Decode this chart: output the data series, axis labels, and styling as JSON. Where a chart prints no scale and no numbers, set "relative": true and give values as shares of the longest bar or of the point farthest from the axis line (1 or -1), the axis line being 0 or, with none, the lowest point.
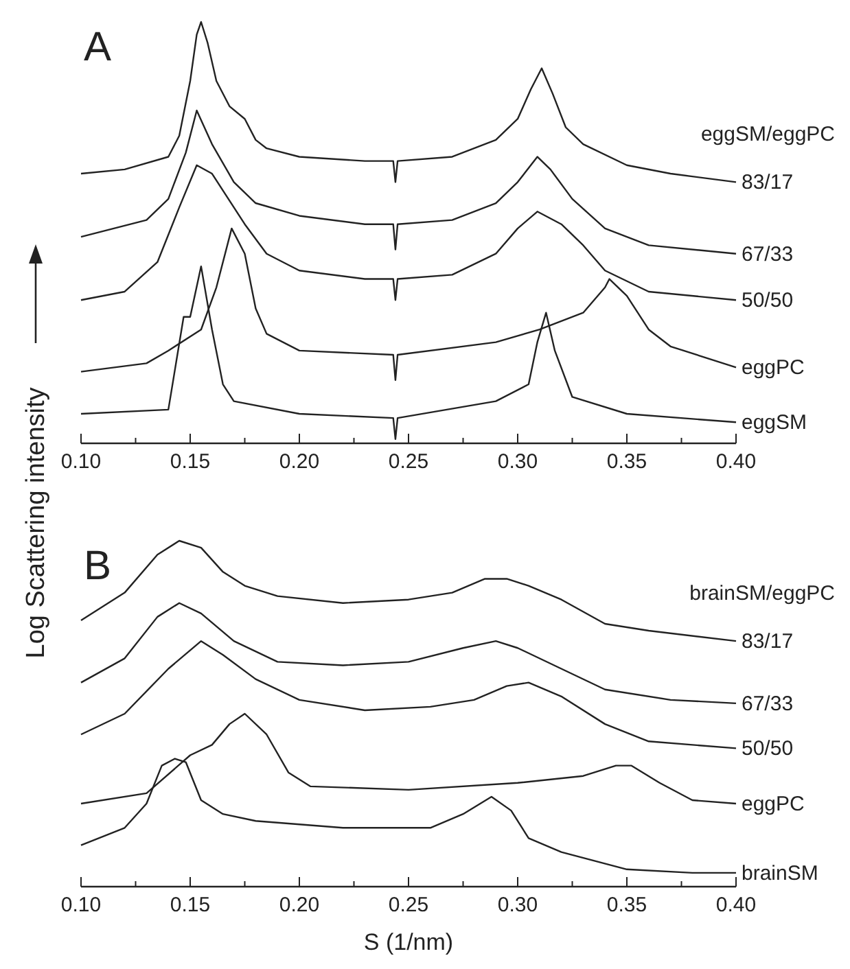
{
  "chart_data": [
    {
      "type": "line",
      "title": "A",
      "ylabel": "Log Scattering intensity",
      "legend_title": "eggSM/eggPC",
      "relative": true,
      "xlim": [
        0.1,
        0.4
      ],
      "xticks": [
        {
          "value": 0.1,
          "label": "0.10"
        },
        {
          "value": 0.125,
          "label": null
        },
        {
          "value": 0.15,
          "label": "0.15"
        },
        {
          "value": 0.175,
          "label": null
        },
        {
          "value": 0.2,
          "label": "0.20"
        },
        {
          "value": 0.225,
          "label": null
        },
        {
          "value": 0.25,
          "label": "0.25"
        },
        {
          "value": 0.275,
          "label": null
        },
        {
          "value": 0.3,
          "label": "0.30"
        },
        {
          "value": 0.325,
          "label": null
        },
        {
          "value": 0.35,
          "label": "0.35"
        },
        {
          "value": 0.375,
          "label": null
        },
        {
          "value": 0.4,
          "label": "0.40"
        }
      ],
      "series": [
        {
          "name": "83/17",
          "color": "#222222",
          "x": [
            0.1,
            0.12,
            0.14,
            0.145,
            0.15,
            0.153,
            0.155,
            0.158,
            0.162,
            0.168,
            0.175,
            0.18,
            0.185,
            0.2,
            0.23,
            0.243,
            0.244,
            0.245,
            0.27,
            0.29,
            0.3,
            0.306,
            0.311,
            0.316,
            0.322,
            0.33,
            0.35,
            0.37,
            0.4
          ],
          "values": [
            0.64,
            0.65,
            0.68,
            0.73,
            0.86,
            0.97,
            1.0,
            0.95,
            0.86,
            0.8,
            0.77,
            0.72,
            0.7,
            0.68,
            0.67,
            0.67,
            0.62,
            0.67,
            0.68,
            0.72,
            0.77,
            0.84,
            0.89,
            0.83,
            0.75,
            0.71,
            0.66,
            0.64,
            0.62
          ]
        },
        {
          "name": "67/33",
          "color": "#222222",
          "x": [
            0.1,
            0.13,
            0.14,
            0.148,
            0.153,
            0.16,
            0.17,
            0.18,
            0.2,
            0.23,
            0.243,
            0.244,
            0.245,
            0.27,
            0.29,
            0.3,
            0.309,
            0.315,
            0.325,
            0.34,
            0.36,
            0.4
          ],
          "values": [
            0.49,
            0.53,
            0.58,
            0.69,
            0.79,
            0.71,
            0.62,
            0.57,
            0.54,
            0.52,
            0.52,
            0.46,
            0.52,
            0.53,
            0.57,
            0.62,
            0.68,
            0.65,
            0.58,
            0.51,
            0.47,
            0.45
          ]
        },
        {
          "name": "50/50",
          "color": "#222222",
          "x": [
            0.1,
            0.12,
            0.135,
            0.145,
            0.153,
            0.16,
            0.165,
            0.175,
            0.185,
            0.2,
            0.23,
            0.243,
            0.244,
            0.245,
            0.27,
            0.29,
            0.3,
            0.309,
            0.32,
            0.33,
            0.34,
            0.36,
            0.4
          ],
          "values": [
            0.34,
            0.36,
            0.43,
            0.56,
            0.66,
            0.64,
            0.6,
            0.52,
            0.45,
            0.41,
            0.39,
            0.39,
            0.34,
            0.39,
            0.4,
            0.45,
            0.51,
            0.55,
            0.52,
            0.47,
            0.41,
            0.36,
            0.34
          ]
        },
        {
          "name": "eggPC",
          "color": "#222222",
          "x": [
            0.1,
            0.13,
            0.14,
            0.155,
            0.162,
            0.169,
            0.175,
            0.18,
            0.185,
            0.2,
            0.243,
            0.244,
            0.245,
            0.29,
            0.31,
            0.33,
            0.34,
            0.342,
            0.35,
            0.36,
            0.37,
            0.4
          ],
          "values": [
            0.17,
            0.19,
            0.22,
            0.27,
            0.37,
            0.51,
            0.45,
            0.32,
            0.26,
            0.22,
            0.21,
            0.15,
            0.21,
            0.24,
            0.27,
            0.31,
            0.37,
            0.39,
            0.35,
            0.27,
            0.23,
            0.18
          ]
        },
        {
          "name": "eggSM",
          "color": "#222222",
          "x": [
            0.1,
            0.14,
            0.147,
            0.15,
            0.155,
            0.16,
            0.165,
            0.17,
            0.2,
            0.243,
            0.244,
            0.245,
            0.29,
            0.305,
            0.309,
            0.313,
            0.317,
            0.325,
            0.35,
            0.4
          ],
          "values": [
            0.07,
            0.08,
            0.3,
            0.3,
            0.42,
            0.27,
            0.14,
            0.1,
            0.07,
            0.06,
            0.01,
            0.06,
            0.1,
            0.14,
            0.24,
            0.31,
            0.22,
            0.11,
            0.07,
            0.05
          ]
        }
      ]
    },
    {
      "type": "line",
      "title": "B",
      "xlabel": "S (1/nm)",
      "legend_title": "brainSM/eggPC",
      "relative": true,
      "xlim": [
        0.1,
        0.4
      ],
      "xticks": [
        {
          "value": 0.1,
          "label": "0.10"
        },
        {
          "value": 0.125,
          "label": null
        },
        {
          "value": 0.15,
          "label": "0.15"
        },
        {
          "value": 0.175,
          "label": null
        },
        {
          "value": 0.2,
          "label": "0.20"
        },
        {
          "value": 0.225,
          "label": null
        },
        {
          "value": 0.25,
          "label": "0.25"
        },
        {
          "value": 0.275,
          "label": null
        },
        {
          "value": 0.3,
          "label": "0.30"
        },
        {
          "value": 0.325,
          "label": null
        },
        {
          "value": 0.35,
          "label": "0.35"
        },
        {
          "value": 0.375,
          "label": null
        },
        {
          "value": 0.4,
          "label": "0.40"
        }
      ],
      "series": [
        {
          "name": "83/17",
          "color": "#222222",
          "x": [
            0.1,
            0.12,
            0.135,
            0.145,
            0.155,
            0.165,
            0.175,
            0.19,
            0.22,
            0.25,
            0.27,
            0.285,
            0.295,
            0.305,
            0.32,
            0.34,
            0.36,
            0.4
          ],
          "values": [
            0.77,
            0.85,
            0.96,
            1.0,
            0.98,
            0.91,
            0.87,
            0.84,
            0.82,
            0.83,
            0.85,
            0.89,
            0.89,
            0.87,
            0.83,
            0.76,
            0.74,
            0.71
          ]
        },
        {
          "name": "67/33",
          "color": "#222222",
          "x": [
            0.1,
            0.12,
            0.135,
            0.145,
            0.155,
            0.17,
            0.19,
            0.22,
            0.25,
            0.275,
            0.29,
            0.3,
            0.32,
            0.34,
            0.37,
            0.4
          ],
          "values": [
            0.59,
            0.66,
            0.78,
            0.82,
            0.79,
            0.71,
            0.65,
            0.64,
            0.65,
            0.69,
            0.71,
            0.69,
            0.63,
            0.57,
            0.54,
            0.53
          ]
        },
        {
          "name": "50/50",
          "color": "#222222",
          "x": [
            0.1,
            0.12,
            0.14,
            0.155,
            0.165,
            0.18,
            0.2,
            0.23,
            0.26,
            0.28,
            0.295,
            0.305,
            0.32,
            0.34,
            0.36,
            0.4
          ],
          "values": [
            0.44,
            0.5,
            0.63,
            0.71,
            0.67,
            0.6,
            0.54,
            0.51,
            0.52,
            0.54,
            0.58,
            0.59,
            0.55,
            0.47,
            0.42,
            0.4
          ]
        },
        {
          "name": "eggPC",
          "color": "#222222",
          "x": [
            0.1,
            0.13,
            0.15,
            0.16,
            0.168,
            0.175,
            0.185,
            0.195,
            0.205,
            0.25,
            0.3,
            0.33,
            0.345,
            0.352,
            0.365,
            0.38,
            0.4
          ],
          "values": [
            0.24,
            0.27,
            0.38,
            0.41,
            0.47,
            0.5,
            0.44,
            0.33,
            0.29,
            0.28,
            0.3,
            0.32,
            0.35,
            0.35,
            0.3,
            0.25,
            0.24
          ]
        },
        {
          "name": "brainSM",
          "color": "#222222",
          "x": [
            0.1,
            0.12,
            0.13,
            0.137,
            0.143,
            0.148,
            0.155,
            0.165,
            0.18,
            0.22,
            0.26,
            0.275,
            0.288,
            0.297,
            0.305,
            0.32,
            0.35,
            0.38,
            0.4
          ],
          "values": [
            0.12,
            0.17,
            0.24,
            0.35,
            0.37,
            0.36,
            0.25,
            0.21,
            0.19,
            0.17,
            0.17,
            0.21,
            0.26,
            0.22,
            0.14,
            0.1,
            0.05,
            0.04,
            0.04
          ]
        }
      ]
    }
  ]
}
